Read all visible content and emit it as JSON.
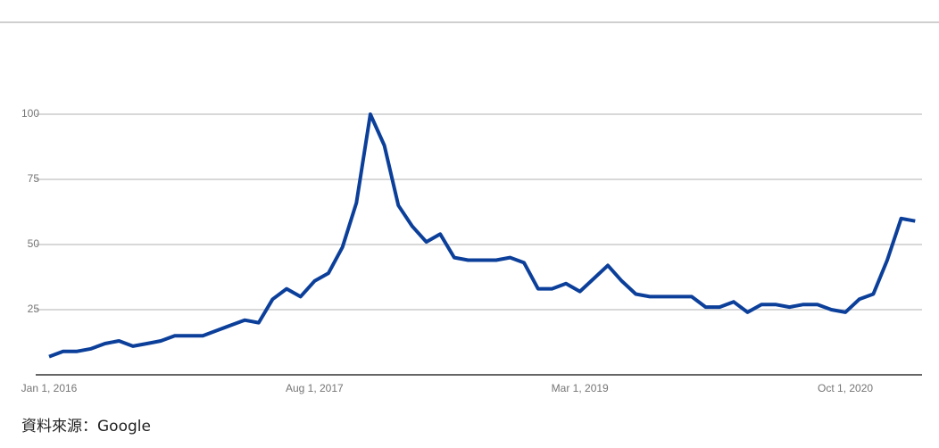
{
  "chart_data": {
    "type": "line",
    "categories": [
      "Jan 1, 2016",
      null,
      null,
      null,
      null,
      null,
      null,
      null,
      null,
      null,
      null,
      null,
      null,
      null,
      null,
      null,
      null,
      null,
      null,
      "Aug 1, 2017",
      null,
      null,
      null,
      null,
      null,
      null,
      null,
      null,
      null,
      null,
      null,
      null,
      null,
      null,
      null,
      null,
      null,
      null,
      "Mar 1, 2019",
      null,
      null,
      null,
      null,
      null,
      null,
      null,
      null,
      null,
      null,
      null,
      null,
      null,
      null,
      null,
      null,
      null,
      null,
      "Oct 1, 2020",
      null,
      null,
      null,
      null,
      null
    ],
    "values": [
      7,
      9,
      9,
      10,
      12,
      13,
      11,
      12,
      13,
      15,
      15,
      15,
      17,
      19,
      21,
      20,
      29,
      33,
      30,
      36,
      39,
      49,
      66,
      100,
      88,
      65,
      57,
      51,
      54,
      45,
      44,
      44,
      44,
      45,
      43,
      33,
      33,
      35,
      32,
      37,
      42,
      36,
      31,
      30,
      30,
      30,
      30,
      26,
      26,
      28,
      24,
      27,
      27,
      26,
      27,
      27,
      25,
      24,
      29,
      31,
      44,
      60,
      59
    ],
    "color": "#0b3f9a",
    "ylim": [
      0,
      100
    ],
    "yticks": [
      25,
      50,
      75,
      100
    ],
    "grid": true,
    "source": "資料來源：Google"
  }
}
